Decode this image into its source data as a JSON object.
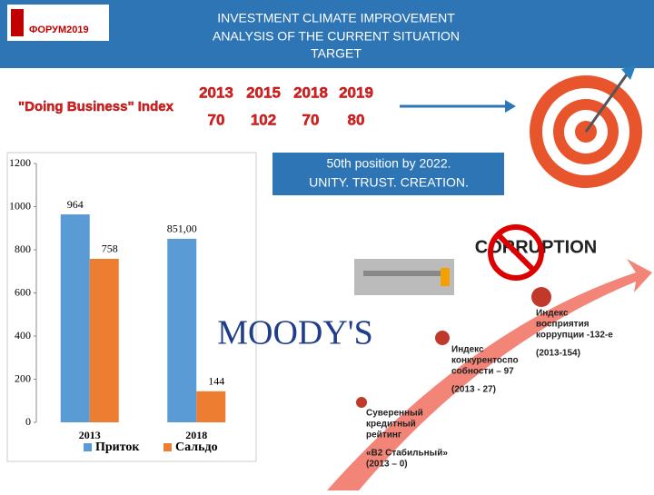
{
  "header": {
    "logo": "ФОРУМ2019",
    "title_lines": [
      "INVESTMENT CLIMATE IMPROVEMENT",
      "ANALYSIS OF THE CURRENT SITUATION",
      "TARGET"
    ]
  },
  "doing_business": {
    "label": "\"Doing Business\" Index",
    "years": [
      "2013",
      "2015",
      "2018",
      "2019"
    ],
    "ranks": [
      "70",
      "102",
      "70",
      "80"
    ]
  },
  "target_box": {
    "lines": [
      "50th position by 2022.",
      "UNITY. TRUST. CREATION."
    ]
  },
  "chart_data": {
    "type": "bar",
    "categories": [
      "2013",
      "2018"
    ],
    "series": [
      {
        "name": "Приток",
        "color": "#5b9bd5",
        "values": [
          964,
          851
        ],
        "value_labels": [
          "964",
          "851,00"
        ]
      },
      {
        "name": "Сальдо",
        "color": "#ed7d31",
        "values": [
          758,
          144
        ],
        "value_labels": [
          "758",
          "144"
        ]
      }
    ],
    "ylim": [
      0,
      1200
    ],
    "yticks": [
      0,
      200,
      400,
      600,
      800,
      1000,
      1200
    ],
    "grid": false,
    "legend": "bottom"
  },
  "logos": {
    "moodys": "MOODY'S",
    "corruption": "CORRUPTION"
  },
  "milestones": [
    {
      "lines": [
        "Суверенный",
        "кредитный",
        "рейтинг",
        "«В2 Стабильный»",
        "(2013 – 0)"
      ]
    },
    {
      "lines": [
        "Индекс",
        "конкурентоспо",
        "собности – 97",
        "(2013 - 27)"
      ]
    },
    {
      "lines": [
        "Индекс",
        "восприятия",
        "коррупции -132-е",
        "(2013-154)"
      ]
    }
  ]
}
